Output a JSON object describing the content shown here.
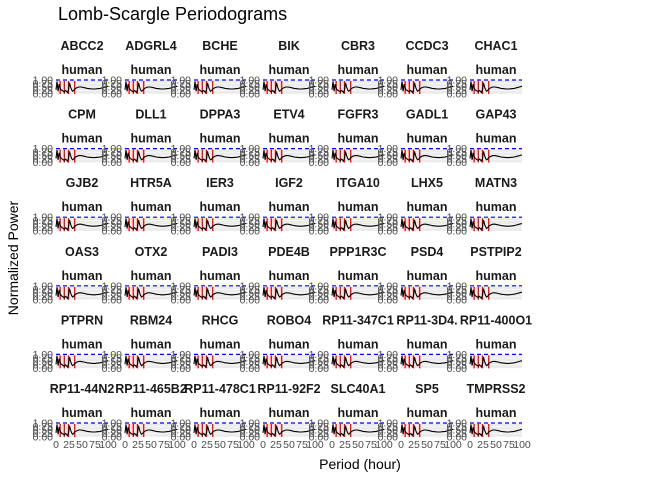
{
  "figure": {
    "title": "Lomb-Scargle Periodograms",
    "xlabel": "Period (hour)",
    "ylabel": "Normalized Power"
  },
  "chart_data": {
    "type": "line",
    "facet_layout": {
      "rows": 6,
      "cols": 7
    },
    "facets": [
      {
        "gene": "ABCC2",
        "species": "human"
      },
      {
        "gene": "ADGRL4",
        "species": "human"
      },
      {
        "gene": "BCHE",
        "species": "human"
      },
      {
        "gene": "BIK",
        "species": "human"
      },
      {
        "gene": "CBR3",
        "species": "human"
      },
      {
        "gene": "CCDC3",
        "species": "human"
      },
      {
        "gene": "CHAC1",
        "species": "human"
      },
      {
        "gene": "CPM",
        "species": "human"
      },
      {
        "gene": "DLL1",
        "species": "human"
      },
      {
        "gene": "DPPA3",
        "species": "human"
      },
      {
        "gene": "ETV4",
        "species": "human"
      },
      {
        "gene": "FGFR3",
        "species": "human"
      },
      {
        "gene": "GADL1",
        "species": "human"
      },
      {
        "gene": "GAP43",
        "species": "human"
      },
      {
        "gene": "GJB2",
        "species": "human"
      },
      {
        "gene": "HTR5A",
        "species": "human"
      },
      {
        "gene": "IER3",
        "species": "human"
      },
      {
        "gene": "IGF2",
        "species": "human"
      },
      {
        "gene": "ITGA10",
        "species": "human"
      },
      {
        "gene": "LHX5",
        "species": "human"
      },
      {
        "gene": "MATN3",
        "species": "human"
      },
      {
        "gene": "OAS3",
        "species": "human"
      },
      {
        "gene": "OTX2",
        "species": "human"
      },
      {
        "gene": "PADI3",
        "species": "human"
      },
      {
        "gene": "PDE4B",
        "species": "human"
      },
      {
        "gene": "PPP1R3C",
        "species": "human"
      },
      {
        "gene": "PSD4",
        "species": "human"
      },
      {
        "gene": "PSTPIP2",
        "species": "human"
      },
      {
        "gene": "PTPRN",
        "species": "human"
      },
      {
        "gene": "RBM24",
        "species": "human"
      },
      {
        "gene": "RHCG",
        "species": "human"
      },
      {
        "gene": "ROBO4",
        "species": "human"
      },
      {
        "gene": "RP11-347C1",
        "species": "human"
      },
      {
        "gene": "RP11-3D4.",
        "species": "human"
      },
      {
        "gene": "RP11-400O1",
        "species": "human"
      },
      {
        "gene": "RP11-44N2",
        "species": "human"
      },
      {
        "gene": "RP11-465B2",
        "species": "human"
      },
      {
        "gene": "RP11-478C1",
        "species": "human"
      },
      {
        "gene": "RP11-92F2",
        "species": "human"
      },
      {
        "gene": "SLC40A1",
        "species": "human"
      },
      {
        "gene": "SP5",
        "species": "human"
      },
      {
        "gene": "TMPRSS2",
        "species": "human"
      }
    ],
    "x_ticks": [
      "0",
      "25",
      "50",
      "75",
      "100"
    ],
    "y_ticks": [
      "0.00",
      "0.25",
      "0.50",
      "0.75",
      "1.00"
    ],
    "xlim": [
      0,
      100
    ],
    "ylim": [
      0,
      1
    ],
    "threshold": 1.0,
    "power_curve": {
      "period": [
        0,
        2,
        4,
        6,
        8,
        10,
        12,
        14,
        16,
        18,
        20,
        22,
        24,
        26,
        28,
        30,
        32,
        34,
        36,
        40,
        44,
        48,
        55,
        60,
        65,
        70,
        75,
        80,
        85,
        90,
        95,
        100
      ],
      "power": [
        0.3,
        0.9,
        0.2,
        0.7,
        0.4,
        0.3,
        0.25,
        0.2,
        0.15,
        0.25,
        0.2,
        0.1,
        0.3,
        0.8,
        0.5,
        0.3,
        0.2,
        0.25,
        0.35,
        0.45,
        0.5,
        0.5,
        0.45,
        0.4,
        0.38,
        0.36,
        0.36,
        0.38,
        0.4,
        0.45,
        0.5,
        0.55
      ]
    },
    "marker_periods": [
      8,
      16,
      24,
      36
    ],
    "colors": {
      "threshold": "#0000ff",
      "curve": "#000000",
      "markers": "#ff0000",
      "panel_bg": "#ebebeb"
    }
  }
}
